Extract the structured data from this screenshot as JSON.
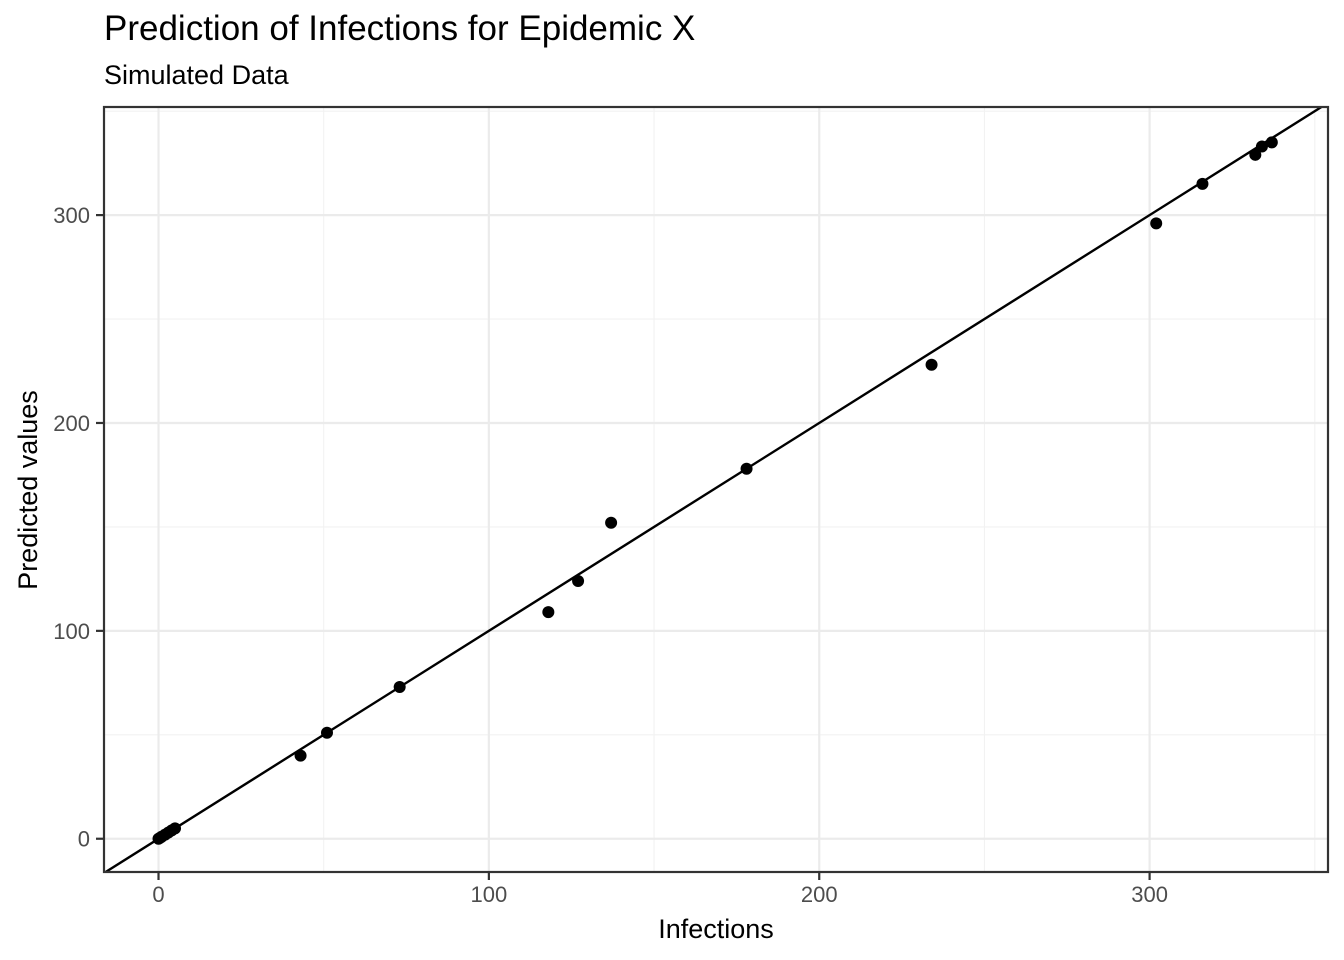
{
  "chart_data": {
    "type": "scatter",
    "title": "Prediction of Infections for Epidemic X",
    "subtitle": "Simulated Data",
    "xlabel": "Infections",
    "ylabel": "Predicted values",
    "xlim": [
      -16.5,
      354
    ],
    "ylim": [
      -16,
      352
    ],
    "x_ticks": [
      0,
      100,
      200,
      300
    ],
    "y_ticks": [
      0,
      100,
      200,
      300
    ],
    "grid": true,
    "reference_line": {
      "slope": 1,
      "intercept": 0
    },
    "points": [
      {
        "x": 0,
        "y": 0
      },
      {
        "x": 0.5,
        "y": 0.5
      },
      {
        "x": 1,
        "y": 1
      },
      {
        "x": 2,
        "y": 2
      },
      {
        "x": 3,
        "y": 3
      },
      {
        "x": 4,
        "y": 4
      },
      {
        "x": 5,
        "y": 5
      },
      {
        "x": 43,
        "y": 40
      },
      {
        "x": 51,
        "y": 51
      },
      {
        "x": 73,
        "y": 73
      },
      {
        "x": 118,
        "y": 109
      },
      {
        "x": 127,
        "y": 124
      },
      {
        "x": 137,
        "y": 152
      },
      {
        "x": 178,
        "y": 178
      },
      {
        "x": 234,
        "y": 228
      },
      {
        "x": 302,
        "y": 296
      },
      {
        "x": 316,
        "y": 315
      },
      {
        "x": 332,
        "y": 329
      },
      {
        "x": 334,
        "y": 333
      },
      {
        "x": 337,
        "y": 335
      }
    ]
  }
}
